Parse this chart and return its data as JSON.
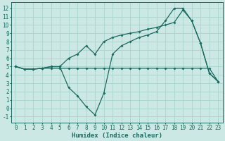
{
  "title": "",
  "xlabel": "Humidex (Indice chaleur)",
  "ylabel": "",
  "bg_color": "#cce8e4",
  "line_color": "#1a6b60",
  "grid_color": "#aad4ce",
  "xlim": [
    -0.5,
    23.5
  ],
  "ylim": [
    -1.7,
    12.7
  ],
  "xticks": [
    0,
    1,
    2,
    3,
    4,
    5,
    6,
    7,
    8,
    9,
    10,
    11,
    12,
    13,
    14,
    15,
    16,
    17,
    18,
    19,
    20,
    21,
    22,
    23
  ],
  "yticks": [
    -1,
    0,
    1,
    2,
    3,
    4,
    5,
    6,
    7,
    8,
    9,
    10,
    11,
    12
  ],
  "line1_x": [
    0,
    1,
    2,
    3,
    4,
    5,
    6,
    7,
    8,
    9,
    10,
    11,
    12,
    13,
    14,
    15,
    16,
    17,
    18,
    19,
    20,
    21,
    22,
    23
  ],
  "line1_y": [
    5.0,
    4.7,
    4.7,
    4.8,
    4.8,
    4.8,
    4.8,
    4.8,
    4.8,
    4.8,
    4.8,
    4.8,
    4.8,
    4.8,
    4.8,
    4.8,
    4.8,
    4.8,
    4.8,
    4.8,
    4.8,
    4.8,
    4.8,
    3.2
  ],
  "line2_x": [
    0,
    1,
    2,
    3,
    4,
    5,
    6,
    7,
    8,
    9,
    10,
    11,
    12,
    13,
    14,
    15,
    16,
    17,
    18,
    19,
    20,
    21,
    22,
    23
  ],
  "line2_y": [
    5.0,
    4.7,
    4.7,
    4.8,
    5.0,
    5.0,
    6.0,
    6.5,
    7.5,
    6.5,
    8.0,
    8.5,
    8.8,
    9.0,
    9.2,
    9.5,
    9.7,
    10.0,
    10.3,
    11.8,
    10.5,
    7.8,
    4.2,
    3.2
  ],
  "line3_x": [
    0,
    1,
    2,
    3,
    4,
    5,
    6,
    7,
    8,
    9,
    10,
    11,
    12,
    13,
    14,
    15,
    16,
    17,
    18,
    19,
    20,
    21,
    22,
    23
  ],
  "line3_y": [
    5.0,
    4.7,
    4.7,
    4.8,
    5.0,
    5.0,
    2.5,
    1.5,
    0.2,
    -0.8,
    1.8,
    6.5,
    7.5,
    8.0,
    8.5,
    8.8,
    9.2,
    10.5,
    12.0,
    12.0,
    10.5,
    7.8,
    4.2,
    3.2
  ],
  "marker_size": 2.0,
  "line_width": 0.9,
  "tick_fontsize": 5.5,
  "xlabel_fontsize": 6.5
}
